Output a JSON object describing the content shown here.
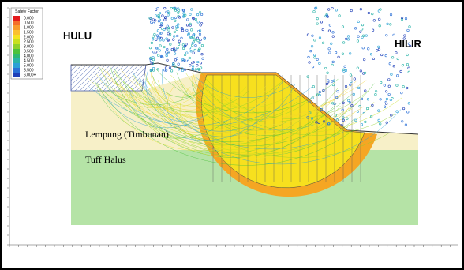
{
  "header": {
    "upstream_label": "HULU",
    "downstream_label": "HILIR"
  },
  "legend": {
    "title": "Safety Factor",
    "values": [
      "0.000",
      "0.500",
      "1.000",
      "1.500",
      "2.000",
      "2.500",
      "3.000",
      "3.500",
      "4.000",
      "4.500",
      "5.000",
      "5.500",
      "6.000+"
    ]
  },
  "layers": [
    {
      "label": "Lempung (Timbunan)"
    },
    {
      "label": "Tuff Halus"
    }
  ]
}
